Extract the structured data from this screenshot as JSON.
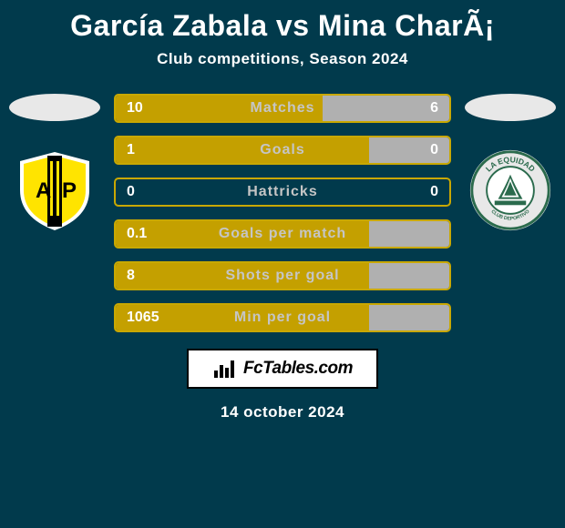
{
  "title": "García Zabala vs Mina CharÃ¡",
  "subtitle": "Club competitions, Season 2024",
  "date": "14 october 2024",
  "footer_brand": "FcTables.com",
  "colors": {
    "left_accent": "#c9a800",
    "left_fill": "#c4a000",
    "right_accent": "#c5c5c5",
    "right_fill": "#b0b0b0",
    "bg": "#013a4c"
  },
  "stats": [
    {
      "label": "Matches",
      "l": "10",
      "r": "6",
      "lw": 62,
      "rw": 38
    },
    {
      "label": "Goals",
      "l": "1",
      "r": "0",
      "lw": 76,
      "rw": 24
    },
    {
      "label": "Hattricks",
      "l": "0",
      "r": "0",
      "lw": 0,
      "rw": 0
    },
    {
      "label": "Goals per match",
      "l": "0.1",
      "r": "",
      "lw": 76,
      "rw": 24
    },
    {
      "label": "Shots per goal",
      "l": "8",
      "r": "",
      "lw": 76,
      "rw": 24
    },
    {
      "label": "Min per goal",
      "l": "1065",
      "r": "",
      "lw": 76,
      "rw": 24
    }
  ],
  "badge_left": {
    "outer": "#ffe400",
    "stripe": "#000000",
    "letters": "AP"
  },
  "badge_right": {
    "outer": "#e8e8e8",
    "ring": "#2b6b4d",
    "text_top": "LA EQUIDAD",
    "text_bottom": "CLUB DEPORTIVO"
  }
}
